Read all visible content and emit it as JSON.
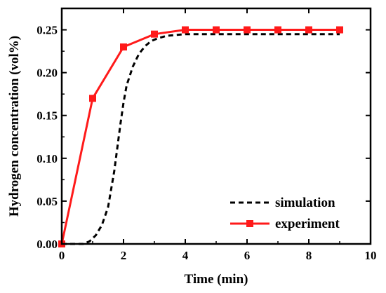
{
  "chart_data": {
    "type": "line",
    "title": "",
    "xlabel": "Time (min)",
    "ylabel": "Hydrogen concentration (vol%)",
    "xlim": [
      0,
      10
    ],
    "ylim": [
      0,
      0.275
    ],
    "x_ticks": [
      0,
      2,
      4,
      6,
      8,
      10
    ],
    "x_tick_labels": [
      "0",
      "2",
      "4",
      "6",
      "8",
      "10"
    ],
    "y_ticks": [
      0.0,
      0.05,
      0.1,
      0.15,
      0.2,
      0.25
    ],
    "y_tick_labels": [
      "0.00",
      "0.05",
      "0.10",
      "0.15",
      "0.20",
      "0.25"
    ],
    "grid": false,
    "legend_position": "bottom-right",
    "series": [
      {
        "name": "simulation",
        "style": "dashed",
        "color": "#000000",
        "x": [
          0.0,
          0.7,
          0.9,
          1.1,
          1.3,
          1.5,
          1.7,
          1.9,
          2.0,
          2.1,
          2.3,
          2.5,
          2.7,
          2.9,
          3.1,
          3.4,
          3.7,
          4.0,
          5.0,
          6.0,
          7.0,
          8.0,
          9.0
        ],
        "y": [
          0.0,
          0.0,
          0.003,
          0.01,
          0.022,
          0.043,
          0.085,
          0.14,
          0.165,
          0.185,
          0.207,
          0.222,
          0.231,
          0.237,
          0.24,
          0.243,
          0.244,
          0.245,
          0.245,
          0.245,
          0.245,
          0.245,
          0.245
        ]
      },
      {
        "name": "experiment",
        "style": "solid-with-square-markers",
        "color": "#ff1a1a",
        "x": [
          0,
          1,
          2,
          3,
          4,
          5,
          6,
          7,
          8,
          9
        ],
        "y": [
          0.0,
          0.17,
          0.23,
          0.245,
          0.25,
          0.25,
          0.25,
          0.25,
          0.25,
          0.25
        ]
      }
    ],
    "legend": [
      {
        "label": "simulation",
        "style": "dashed"
      },
      {
        "label": "experiment",
        "style": "solid-with-square-markers"
      }
    ]
  }
}
